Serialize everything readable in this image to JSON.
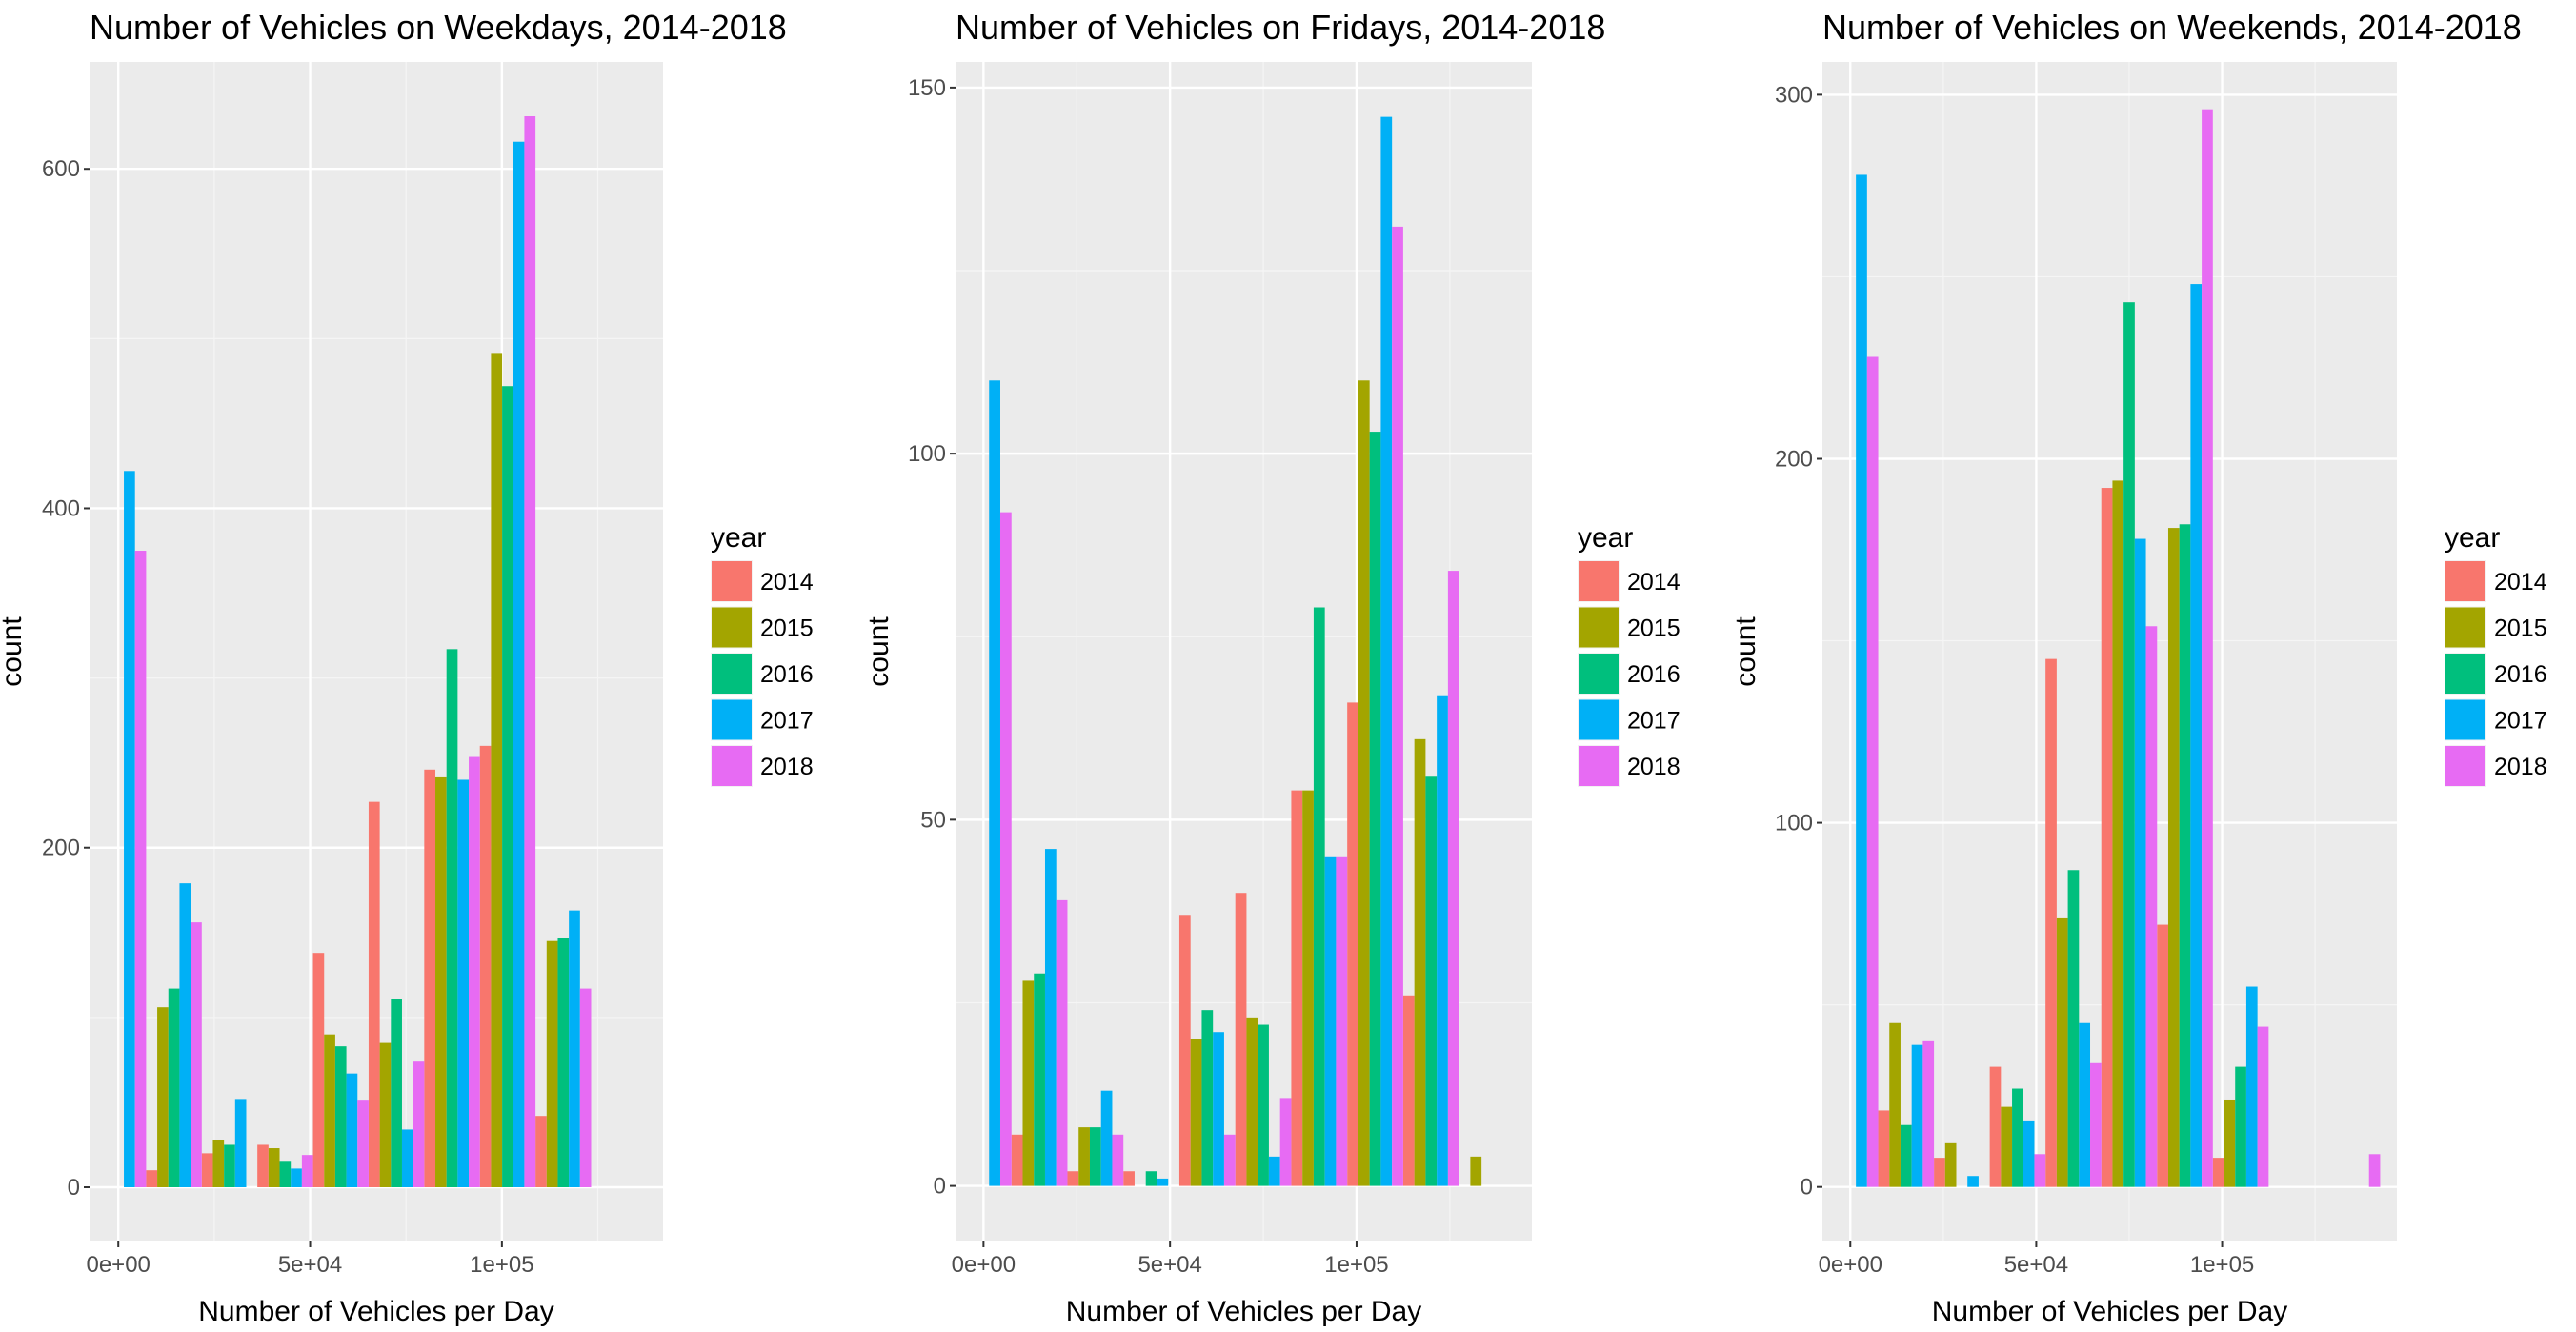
{
  "chart_data": [
    {
      "type": "bar",
      "title": "Number of Vehicles on Weekdays, 2014-2018",
      "xlabel": "Number of Vehicles per Day",
      "ylabel": "count",
      "x_ticks": [
        {
          "value": 0,
          "label": "0e+00"
        },
        {
          "value": 50000,
          "label": "5e+04"
        },
        {
          "value": 100000,
          "label": "1e+05"
        }
      ],
      "y_ticks": [
        0,
        200,
        400,
        600
      ],
      "xlim": [
        -7500,
        142000
      ],
      "ylim": [
        -32,
        663
      ],
      "bin_width": 14500,
      "bins": [
        0,
        14500,
        29000,
        43500,
        58000,
        72500,
        87000,
        101500,
        116000,
        130500
      ],
      "grid": true,
      "legend": {
        "title": "year",
        "position": "right"
      },
      "series": [
        {
          "name": "2014",
          "values": [
            0,
            10,
            20,
            25,
            138,
            227,
            246,
            260,
            42,
            0
          ]
        },
        {
          "name": "2015",
          "values": [
            0,
            106,
            28,
            23,
            90,
            85,
            242,
            491,
            145,
            0
          ]
        },
        {
          "name": "2016",
          "values": [
            0,
            117,
            25,
            15,
            83,
            111,
            317,
            472,
            147,
            0
          ]
        },
        {
          "name": "2017",
          "values": [
            422,
            179,
            52,
            11,
            67,
            34,
            240,
            616,
            163,
            0
          ]
        },
        {
          "name": "2018",
          "values": [
            375,
            156,
            0,
            19,
            51,
            74,
            254,
            631,
            117,
            0
          ]
        }
      ]
    },
    {
      "type": "bar",
      "title": "Number of Vehicles on Fridays, 2014-2018",
      "xlabel": "Number of Vehicles per Day",
      "ylabel": "count",
      "x_ticks": [
        {
          "value": 0,
          "label": "0e+00"
        },
        {
          "value": 50000,
          "label": "5e+04"
        },
        {
          "value": 100000,
          "label": "1e+05"
        }
      ],
      "y_ticks": [
        0,
        50,
        100,
        150
      ],
      "xlim": [
        -7500,
        147000
      ],
      "ylim": [
        -7.6,
        153.5
      ],
      "bin_width": 15000,
      "bins": [
        0,
        15000,
        30000,
        45000,
        60000,
        75000,
        90000,
        105000,
        120000,
        135000
      ],
      "grid": true,
      "legend": {
        "title": "year",
        "position": "right"
      },
      "series": [
        {
          "name": "2014",
          "values": [
            0,
            7,
            2,
            2,
            37,
            40,
            54,
            66,
            26,
            0
          ]
        },
        {
          "name": "2015",
          "values": [
            0,
            28,
            8,
            0,
            20,
            23,
            54,
            110,
            61,
            4
          ]
        },
        {
          "name": "2016",
          "values": [
            0,
            29,
            8,
            2,
            24,
            22,
            79,
            103,
            56,
            0
          ]
        },
        {
          "name": "2017",
          "values": [
            110,
            46,
            13,
            1,
            21,
            4,
            45,
            146,
            67,
            0
          ]
        },
        {
          "name": "2018",
          "values": [
            92,
            39,
            7,
            0,
            7,
            12,
            45,
            131,
            84,
            0
          ]
        }
      ]
    },
    {
      "type": "bar",
      "title": "Number of Vehicles on Weekends, 2014-2018",
      "xlabel": "Number of Vehicles per Day",
      "ylabel": "count",
      "x_ticks": [
        {
          "value": 0,
          "label": "0e+00"
        },
        {
          "value": 50000,
          "label": "5e+04"
        },
        {
          "value": 100000,
          "label": "1e+05"
        }
      ],
      "y_ticks": [
        0,
        100,
        200,
        300
      ],
      "xlim": [
        -7500,
        147000
      ],
      "ylim": [
        -15,
        309
      ],
      "bin_width": 15000,
      "bins": [
        0,
        15000,
        30000,
        45000,
        60000,
        75000,
        90000,
        105000,
        120000,
        135000
      ],
      "grid": true,
      "legend": {
        "title": "year",
        "position": "right"
      },
      "series": [
        {
          "name": "2014",
          "values": [
            0,
            21,
            8,
            33,
            145,
            192,
            72,
            8,
            0,
            0
          ]
        },
        {
          "name": "2015",
          "values": [
            0,
            45,
            12,
            22,
            74,
            194,
            181,
            24,
            0,
            0
          ]
        },
        {
          "name": "2016",
          "values": [
            0,
            17,
            0,
            27,
            87,
            243,
            182,
            33,
            0,
            0
          ]
        },
        {
          "name": "2017",
          "values": [
            278,
            39,
            3,
            18,
            45,
            178,
            248,
            55,
            0,
            0
          ]
        },
        {
          "name": "2018",
          "values": [
            228,
            40,
            0,
            9,
            34,
            154,
            296,
            44,
            0,
            9
          ]
        }
      ]
    }
  ],
  "series_colors": [
    "#F8766D",
    "#A3A500",
    "#00BF7D",
    "#00B0F6",
    "#E76BF3"
  ]
}
